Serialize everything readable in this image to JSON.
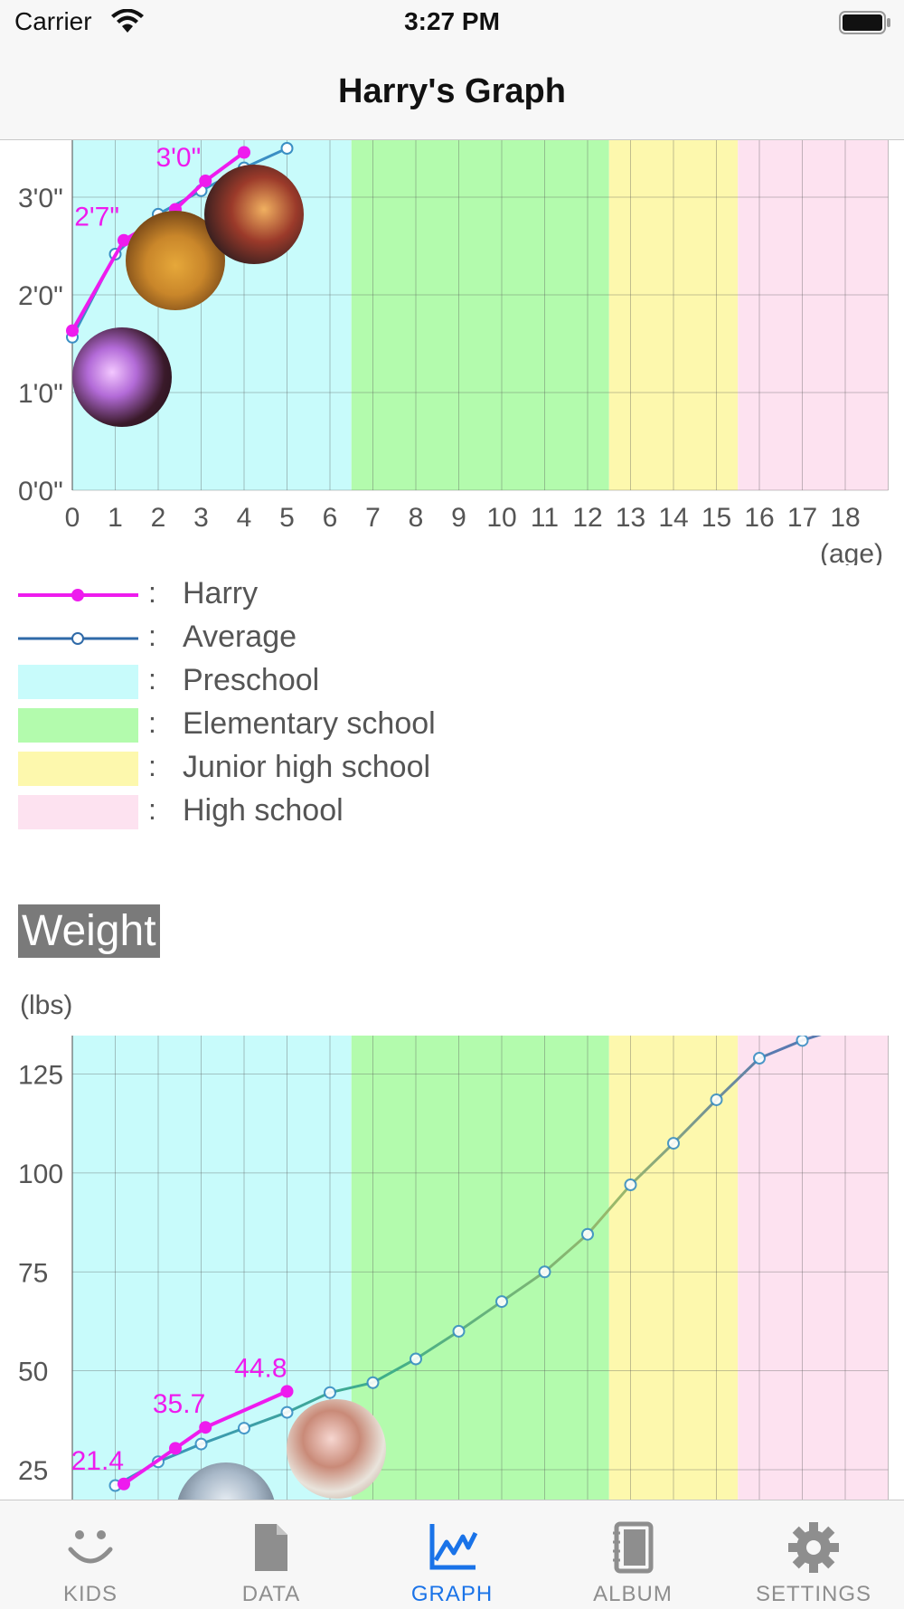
{
  "status_bar": {
    "carrier": "Carrier",
    "time": "3:27 PM"
  },
  "nav": {
    "title": "Harry's Graph"
  },
  "colors": {
    "harry": "#ee1bee",
    "average": "#2f6aa8",
    "preschool": "#c8fbfb",
    "elementary": "#b3fbad",
    "junior_high": "#fdf8ad",
    "high_school": "#fde2f0",
    "tab_active": "#1a73e8",
    "tab_inactive": "#8e8e8e"
  },
  "height_chart": {
    "x_ticks": [
      "0",
      "1",
      "2",
      "3",
      "4",
      "5",
      "6",
      "7",
      "8",
      "9",
      "10",
      "11",
      "12",
      "13",
      "14",
      "15",
      "16",
      "17",
      "18"
    ],
    "x_unit": "(age)",
    "y_ticks": [
      "0'0\"",
      "1'0\"",
      "2'0\"",
      "3'0\""
    ],
    "data_labels": [
      "2'7\"",
      "3'0\""
    ]
  },
  "legend": {
    "colon": ":",
    "items": [
      {
        "label": "Harry",
        "kind": "harry-line"
      },
      {
        "label": "Average",
        "kind": "average-line"
      },
      {
        "label": "Preschool",
        "kind": "preschool"
      },
      {
        "label": "Elementary school",
        "kind": "elementary"
      },
      {
        "label": "Junior high school",
        "kind": "junior_high"
      },
      {
        "label": "High school",
        "kind": "high_school"
      }
    ]
  },
  "weight_section": {
    "title": "Weight",
    "unit": "(lbs)",
    "y_ticks": [
      "25",
      "50",
      "75",
      "100",
      "125"
    ],
    "data_labels": [
      "21.4",
      "35.7",
      "44.8"
    ]
  },
  "chart_data": [
    {
      "type": "line",
      "title": "",
      "xlabel": "(age)",
      "ylabel": "",
      "xlim": [
        0,
        19
      ],
      "ylim_inches": [
        0,
        42
      ],
      "y_tick_labels": [
        "0'0\"",
        "1'0\"",
        "2'0\"",
        "3'0\""
      ],
      "bands": [
        {
          "name": "Preschool",
          "from": 0,
          "to": 6.5
        },
        {
          "name": "Elementary school",
          "from": 6.5,
          "to": 12.5
        },
        {
          "name": "Junior high school",
          "from": 12.5,
          "to": 15.5
        },
        {
          "name": "High school",
          "from": 15.5,
          "to": 19
        }
      ],
      "series": [
        {
          "name": "Harry",
          "x": [
            0,
            1.2,
            2.4,
            3.1,
            4
          ],
          "y_inches": [
            19.6,
            30.7,
            34.5,
            38.0,
            41.5
          ],
          "labels": {
            "1.2": "2'7\"",
            "3.1": "3'0\""
          }
        },
        {
          "name": "Average",
          "x": [
            0,
            1,
            2,
            3,
            4,
            5
          ],
          "y_inches": [
            18.8,
            29.0,
            33.9,
            36.8,
            39.6,
            42.0
          ]
        }
      ]
    },
    {
      "type": "line",
      "title": "Weight",
      "xlabel": "(age)",
      "ylabel": "(lbs)",
      "xlim": [
        0,
        19
      ],
      "ylim": [
        20,
        137
      ],
      "y_tick_labels": [
        "25",
        "50",
        "75",
        "100",
        "125"
      ],
      "bands": [
        {
          "name": "Preschool",
          "from": 0,
          "to": 6.5
        },
        {
          "name": "Elementary school",
          "from": 6.5,
          "to": 12.5
        },
        {
          "name": "Junior high school",
          "from": 12.5,
          "to": 15.5
        },
        {
          "name": "High school",
          "from": 15.5,
          "to": 19
        }
      ],
      "series": [
        {
          "name": "Harry",
          "x": [
            1.2,
            2.4,
            3.1,
            5
          ],
          "y": [
            21.4,
            30.4,
            35.7,
            44.8
          ],
          "labels": {
            "1.2": "21.4",
            "3.1": "35.7",
            "5": "44.8"
          }
        },
        {
          "name": "Average",
          "x": [
            1,
            2,
            3,
            4,
            5,
            6,
            7,
            8,
            9,
            10,
            11,
            12,
            13,
            14,
            15,
            16,
            17,
            18,
            19
          ],
          "y": [
            21,
            27,
            31.5,
            35.5,
            39.5,
            44.5,
            47,
            53,
            60,
            67.5,
            75,
            84.5,
            97,
            107.5,
            118.5,
            129,
            133.5,
            137,
            137
          ]
        }
      ]
    }
  ],
  "tabs": [
    {
      "label": "KIDS",
      "icon": "smiley-face-icon",
      "active": false
    },
    {
      "label": "DATA",
      "icon": "document-icon",
      "active": false
    },
    {
      "label": "GRAPH",
      "icon": "line-graph-icon",
      "active": true
    },
    {
      "label": "ALBUM",
      "icon": "notebook-icon",
      "active": false
    },
    {
      "label": "SETTINGS",
      "icon": "gear-icon",
      "active": false
    }
  ]
}
